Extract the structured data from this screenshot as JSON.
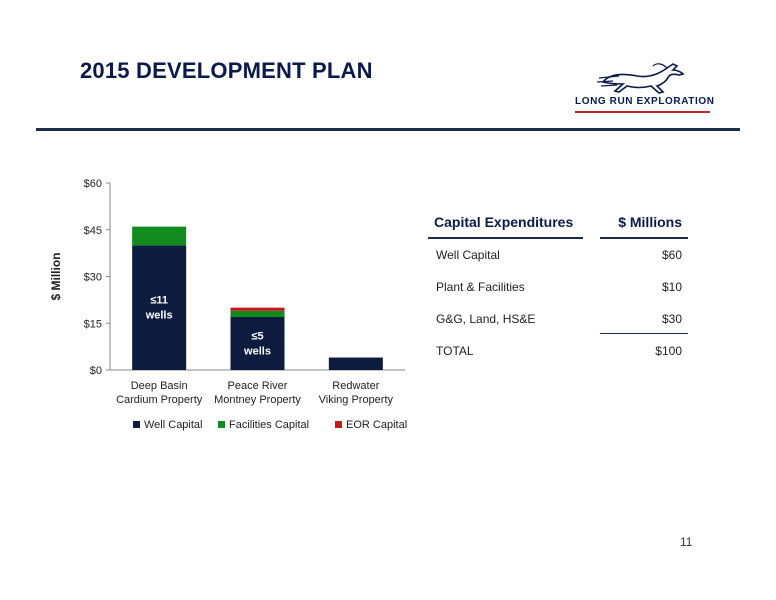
{
  "page": {
    "title": "2015 DEVELOPMENT PLAN",
    "page_number": "11",
    "logo_text": "LONG RUN EXPLORATION"
  },
  "colors": {
    "navy": "#0d1b3e",
    "green": "#118a1e",
    "red": "#c8161c"
  },
  "chart_data": {
    "type": "bar",
    "stacked": true,
    "categories": [
      [
        "Deep Basin",
        "Cardium Property"
      ],
      [
        "Peace River",
        "Montney Property"
      ],
      [
        "Redwater",
        "Viking Property"
      ]
    ],
    "series": [
      {
        "name": "Well Capital",
        "color": "#0d1b3e",
        "values": [
          40,
          17,
          4
        ]
      },
      {
        "name": "Facilities Capital",
        "color": "#118a1e",
        "values": [
          6,
          2,
          0
        ]
      },
      {
        "name": "EOR Capital",
        "color": "#c8161c",
        "values": [
          0,
          1,
          0
        ]
      }
    ],
    "bar_labels": [
      [
        "≤11",
        "wells"
      ],
      [
        "≤5",
        "wells"
      ],
      null
    ],
    "ylabel": "$ Million",
    "ylim": [
      0,
      60
    ],
    "yticks": [
      0,
      15,
      30,
      45,
      60
    ],
    "ytick_labels": [
      "$0",
      "$15",
      "$30",
      "$45",
      "$60"
    ],
    "legend_position": "bottom",
    "grid": false
  },
  "capex_table": {
    "header": [
      "Capital Expenditures",
      "$ Millions"
    ],
    "rows": [
      [
        "Well Capital",
        "$60"
      ],
      [
        "Plant & Facilities",
        "$10"
      ],
      [
        "G&G, Land, HS&E",
        "$30"
      ],
      [
        "TOTAL",
        "$100"
      ]
    ]
  }
}
